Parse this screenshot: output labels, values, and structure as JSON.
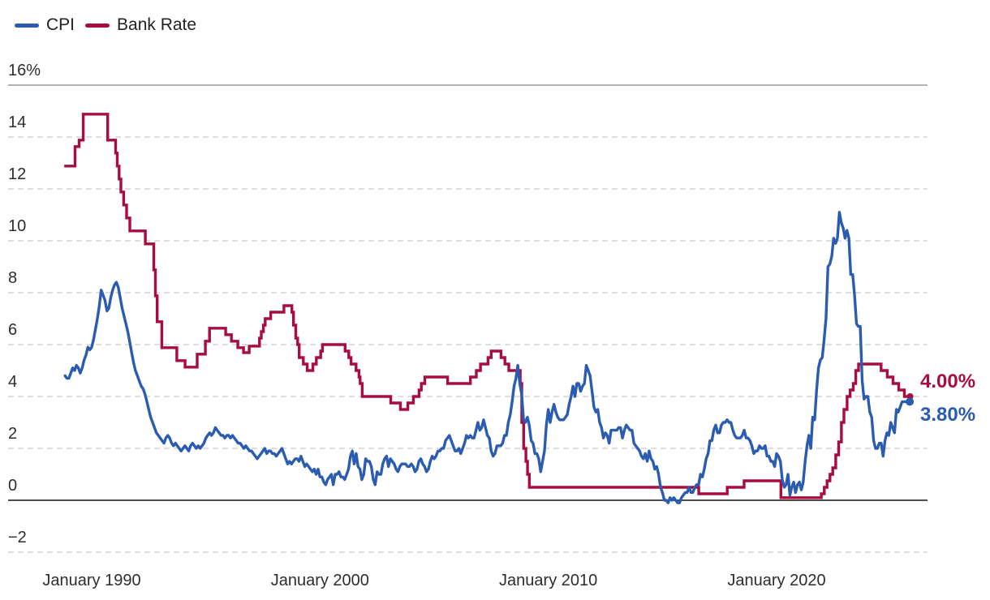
{
  "legend": {
    "items": [
      {
        "label": "CPI",
        "color": "#2b5cb0"
      },
      {
        "label": "Bank Rate",
        "color": "#a80d3e"
      }
    ]
  },
  "y_axis": {
    "ticks": [
      {
        "label": "16%",
        "value": 16,
        "style": "top"
      },
      {
        "label": "14",
        "value": 14,
        "style": "dashed"
      },
      {
        "label": "12",
        "value": 12,
        "style": "dashed"
      },
      {
        "label": "10",
        "value": 10,
        "style": "dashed"
      },
      {
        "label": "8",
        "value": 8,
        "style": "dashed"
      },
      {
        "label": "6",
        "value": 6,
        "style": "dashed"
      },
      {
        "label": "4",
        "value": 4,
        "style": "dashed"
      },
      {
        "label": "2",
        "value": 2,
        "style": "dashed"
      },
      {
        "label": "0",
        "value": 0,
        "style": "zero"
      },
      {
        "label": "−2",
        "value": -2,
        "style": "dashed"
      }
    ]
  },
  "x_axis": {
    "ticks": [
      {
        "label": "January 1990",
        "year": 1990
      },
      {
        "label": "January 2000",
        "year": 2000
      },
      {
        "label": "January 2010",
        "year": 2010
      },
      {
        "label": "January 2020",
        "year": 2020
      }
    ]
  },
  "end_labels": {
    "bank_rate": "4.00%",
    "cpi": "3.80%"
  },
  "chart_data": {
    "type": "line",
    "title": "",
    "xlabel": "",
    "ylabel": "",
    "units": "%",
    "ylim": [
      -2.7,
      16
    ],
    "x_range_years": [
      1988.8,
      2025.85
    ],
    "grid": "horizontal-dashed",
    "legend_position": "top-left",
    "series": [
      {
        "name": "CPI",
        "color": "#2b5cb0",
        "shape": "line",
        "end_label": "3.80%",
        "start_year": 1988.8333,
        "interval_years": 0.0833333,
        "values": [
          4.8,
          4.7,
          4.7,
          4.9,
          5.1,
          5.0,
          5.2,
          5.1,
          4.9,
          5.1,
          5.4,
          5.6,
          5.9,
          5.8,
          5.9,
          6.2,
          6.6,
          7.0,
          7.5,
          8.1,
          7.9,
          7.7,
          7.3,
          7.4,
          7.8,
          8.1,
          8.3,
          8.4,
          8.2,
          7.8,
          7.4,
          7.1,
          6.8,
          6.5,
          6.1,
          5.7,
          5.3,
          5.0,
          4.8,
          4.6,
          4.4,
          4.3,
          4.1,
          3.8,
          3.5,
          3.2,
          3.0,
          2.8,
          2.6,
          2.5,
          2.4,
          2.3,
          2.2,
          2.4,
          2.5,
          2.4,
          2.2,
          2.1,
          2.2,
          2.1,
          2.0,
          1.9,
          2.0,
          2.1,
          2.0,
          1.9,
          2.1,
          2.2,
          2.1,
          2.0,
          2.1,
          2.0,
          2.1,
          2.2,
          2.4,
          2.5,
          2.6,
          2.5,
          2.6,
          2.8,
          2.7,
          2.6,
          2.5,
          2.5,
          2.4,
          2.5,
          2.5,
          2.4,
          2.5,
          2.4,
          2.3,
          2.2,
          2.2,
          2.1,
          2.0,
          2.1,
          2.0,
          1.9,
          1.9,
          1.8,
          1.7,
          1.6,
          1.7,
          1.8,
          1.9,
          2.0,
          1.8,
          1.9,
          1.9,
          1.8,
          1.8,
          1.7,
          1.8,
          1.9,
          2.0,
          1.8,
          1.6,
          1.4,
          1.5,
          1.4,
          1.5,
          1.6,
          1.6,
          1.5,
          1.7,
          1.5,
          1.3,
          1.4,
          1.3,
          1.2,
          1.1,
          1.2,
          1.0,
          1.2,
          0.9,
          0.9,
          0.7,
          0.6,
          0.8,
          0.9,
          1.0,
          0.6,
          1.0,
          1.0,
          1.1,
          0.9,
          0.9,
          0.8,
          1.0,
          1.2,
          1.7,
          1.9,
          1.4,
          1.8,
          1.3,
          1.2,
          0.8,
          1.0,
          1.6,
          1.5,
          1.5,
          1.3,
          0.8,
          0.6,
          1.1,
          1.0,
          1.0,
          1.4,
          1.6,
          1.7,
          1.3,
          1.6,
          1.5,
          1.4,
          1.2,
          1.1,
          1.3,
          1.4,
          1.4,
          1.4,
          1.3,
          1.3,
          1.4,
          1.3,
          1.1,
          1.2,
          1.5,
          1.6,
          1.4,
          1.3,
          1.1,
          1.2,
          1.5,
          1.7,
          1.6,
          1.7,
          1.9,
          1.9,
          2.0,
          2.0,
          2.3,
          2.4,
          2.5,
          2.3,
          2.1,
          1.9,
          1.9,
          2.0,
          1.8,
          2.0,
          2.2,
          2.5,
          2.4,
          2.5,
          2.4,
          2.4,
          2.7,
          3.0,
          2.7,
          2.8,
          3.1,
          2.8,
          2.5,
          2.4,
          1.9,
          1.7,
          1.8,
          2.1,
          2.1,
          2.1,
          2.2,
          2.5,
          2.5,
          3.0,
          3.3,
          3.8,
          4.4,
          4.7,
          5.2,
          4.5,
          4.1,
          3.1,
          3.0,
          3.2,
          2.9,
          2.3,
          2.2,
          1.8,
          1.8,
          1.6,
          1.1,
          1.5,
          1.9,
          2.9,
          3.5,
          3.0,
          3.4,
          3.7,
          3.4,
          3.2,
          3.1,
          3.1,
          3.1,
          3.2,
          3.3,
          3.7,
          4.0,
          4.4,
          4.0,
          4.5,
          4.5,
          4.2,
          4.4,
          4.5,
          5.2,
          5.0,
          4.8,
          4.2,
          3.6,
          3.4,
          3.5,
          3.0,
          2.8,
          2.4,
          2.6,
          2.5,
          2.2,
          2.7,
          2.7,
          2.7,
          2.7,
          2.8,
          2.8,
          2.4,
          2.7,
          2.9,
          2.8,
          2.7,
          2.7,
          2.2,
          2.1,
          2.0,
          1.9,
          1.7,
          1.6,
          1.8,
          1.5,
          1.9,
          1.6,
          1.5,
          1.2,
          1.3,
          1.0,
          0.5,
          0.3,
          0.0,
          0.0,
          -0.1,
          0.1,
          0.0,
          0.1,
          0.0,
          -0.1,
          -0.1,
          0.1,
          0.2,
          0.3,
          0.3,
          0.5,
          0.3,
          0.3,
          0.5,
          0.6,
          0.6,
          1.0,
          0.9,
          1.2,
          1.6,
          1.8,
          2.3,
          2.3,
          2.7,
          2.9,
          2.6,
          2.6,
          2.9,
          3.0,
          3.0,
          3.1,
          3.0,
          3.0,
          2.7,
          2.5,
          2.4,
          2.4,
          2.4,
          2.5,
          2.7,
          2.4,
          2.4,
          2.3,
          2.1,
          1.8,
          1.9,
          1.9,
          2.1,
          2.0,
          2.0,
          2.1,
          1.7,
          1.7,
          1.5,
          1.5,
          1.3,
          1.8,
          1.7,
          1.5,
          0.8,
          0.5,
          0.6,
          1.0,
          0.2,
          0.5,
          0.7,
          0.3,
          0.6,
          0.7,
          0.4,
          0.7,
          1.5,
          2.1,
          2.5,
          2.0,
          3.2,
          3.1,
          4.2,
          5.1,
          5.4,
          5.5,
          6.2,
          7.0,
          9.0,
          9.1,
          9.4,
          10.1,
          9.9,
          10.1,
          11.1,
          10.7,
          10.5,
          10.1,
          10.4,
          10.1,
          8.7,
          8.7,
          7.9,
          6.8,
          6.7,
          6.7,
          4.6,
          3.9,
          4.0,
          4.0,
          3.4,
          3.2,
          2.3,
          2.0,
          2.0,
          2.2,
          2.2,
          1.7,
          2.3,
          2.6,
          2.5,
          3.0,
          2.8,
          2.6,
          3.5,
          3.4,
          3.6,
          3.8,
          3.8,
          3.8,
          3.8,
          3.8
        ]
      },
      {
        "name": "Bank Rate",
        "color": "#a80d3e",
        "shape": "step",
        "end_label": "4.00%",
        "end_year": 2025.85,
        "points": [
          [
            1988.8,
            12.88
          ],
          [
            1989.27,
            13.63
          ],
          [
            1989.45,
            13.88
          ],
          [
            1989.63,
            14.88
          ],
          [
            1990.7,
            13.88
          ],
          [
            1991.05,
            13.38
          ],
          [
            1991.12,
            12.88
          ],
          [
            1991.2,
            12.38
          ],
          [
            1991.28,
            11.88
          ],
          [
            1991.4,
            11.38
          ],
          [
            1991.53,
            10.88
          ],
          [
            1991.67,
            10.38
          ],
          [
            1992.35,
            9.88
          ],
          [
            1992.72,
            8.88
          ],
          [
            1992.79,
            7.88
          ],
          [
            1992.87,
            6.88
          ],
          [
            1993.07,
            5.88
          ],
          [
            1993.73,
            5.38
          ],
          [
            1994.09,
            5.13
          ],
          [
            1994.62,
            5.63
          ],
          [
            1994.98,
            6.13
          ],
          [
            1995.16,
            6.63
          ],
          [
            1995.87,
            6.38
          ],
          [
            1996.12,
            6.13
          ],
          [
            1996.4,
            5.88
          ],
          [
            1996.65,
            5.69
          ],
          [
            1996.9,
            5.94
          ],
          [
            1997.35,
            6.25
          ],
          [
            1997.43,
            6.5
          ],
          [
            1997.52,
            6.75
          ],
          [
            1997.6,
            7.0
          ],
          [
            1997.84,
            7.25
          ],
          [
            1998.42,
            7.5
          ],
          [
            1998.77,
            7.25
          ],
          [
            1998.84,
            6.75
          ],
          [
            1998.94,
            6.25
          ],
          [
            1999.02,
            6.0
          ],
          [
            1999.09,
            5.5
          ],
          [
            1999.27,
            5.25
          ],
          [
            1999.44,
            5.0
          ],
          [
            1999.69,
            5.25
          ],
          [
            1999.84,
            5.5
          ],
          [
            2000.03,
            5.75
          ],
          [
            2000.11,
            6.0
          ],
          [
            2001.1,
            5.75
          ],
          [
            2001.26,
            5.5
          ],
          [
            2001.36,
            5.25
          ],
          [
            2001.58,
            5.0
          ],
          [
            2001.71,
            4.75
          ],
          [
            2001.76,
            4.5
          ],
          [
            2001.85,
            4.0
          ],
          [
            2003.1,
            3.75
          ],
          [
            2003.52,
            3.5
          ],
          [
            2003.85,
            3.75
          ],
          [
            2004.09,
            4.0
          ],
          [
            2004.34,
            4.25
          ],
          [
            2004.44,
            4.5
          ],
          [
            2004.59,
            4.75
          ],
          [
            2005.59,
            4.5
          ],
          [
            2006.59,
            4.75
          ],
          [
            2006.85,
            5.0
          ],
          [
            2007.03,
            5.25
          ],
          [
            2007.36,
            5.5
          ],
          [
            2007.5,
            5.75
          ],
          [
            2007.93,
            5.5
          ],
          [
            2008.1,
            5.25
          ],
          [
            2008.27,
            5.0
          ],
          [
            2008.77,
            4.5
          ],
          [
            2008.84,
            3.0
          ],
          [
            2008.92,
            2.0
          ],
          [
            2009.02,
            1.5
          ],
          [
            2009.09,
            1.0
          ],
          [
            2009.17,
            0.5
          ],
          [
            2016.59,
            0.25
          ],
          [
            2017.84,
            0.5
          ],
          [
            2018.58,
            0.75
          ],
          [
            2020.19,
            0.1
          ],
          [
            2021.96,
            0.25
          ],
          [
            2022.09,
            0.5
          ],
          [
            2022.21,
            0.75
          ],
          [
            2022.34,
            1.0
          ],
          [
            2022.46,
            1.25
          ],
          [
            2022.59,
            1.75
          ],
          [
            2022.72,
            2.25
          ],
          [
            2022.84,
            3.0
          ],
          [
            2022.95,
            3.5
          ],
          [
            2023.09,
            4.0
          ],
          [
            2023.22,
            4.25
          ],
          [
            2023.36,
            4.5
          ],
          [
            2023.47,
            5.0
          ],
          [
            2023.59,
            5.25
          ],
          [
            2024.58,
            5.0
          ],
          [
            2024.85,
            4.75
          ],
          [
            2025.1,
            4.5
          ],
          [
            2025.35,
            4.25
          ],
          [
            2025.6,
            4.0
          ]
        ]
      }
    ]
  }
}
